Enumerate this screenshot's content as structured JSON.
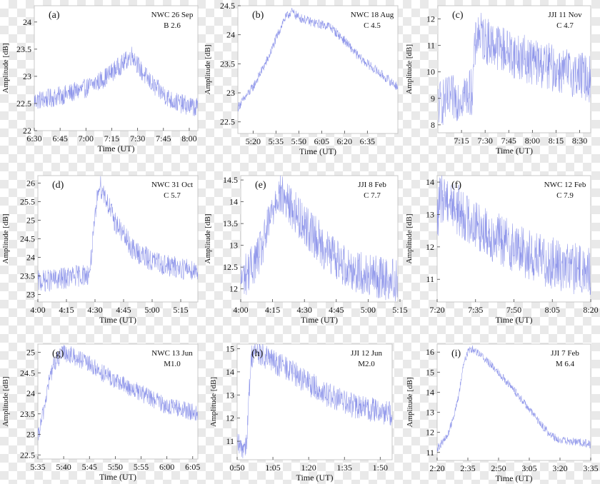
{
  "chart_data": [
    {
      "type": "line",
      "panel": "(a)",
      "station": "NWC 26 Sep",
      "flare_class": "B 2.6",
      "xlabel": "Time (UT)",
      "ylabel": "Amplitude [dB]",
      "xticks": [
        "6:30",
        "6:45",
        "7:00",
        "7:15",
        "7:30",
        "7:45",
        "8:00"
      ],
      "xlim_minutes": [
        390,
        485
      ],
      "xtick_minutes": [
        390,
        405,
        420,
        435,
        450,
        465,
        480
      ],
      "yticks": [
        22,
        22.5,
        23,
        23.5,
        24
      ],
      "ylim": [
        22,
        24.3
      ],
      "series": [
        {
          "x_minutes": [
            390,
            400,
            410,
            420,
            430,
            438,
            442,
            447,
            452,
            460,
            470,
            480,
            485
          ],
          "values": [
            22.55,
            22.6,
            22.68,
            22.78,
            22.95,
            23.15,
            23.25,
            23.4,
            23.1,
            22.8,
            22.55,
            22.45,
            22.42
          ],
          "noise": 0.18
        }
      ]
    },
    {
      "type": "line",
      "panel": "(b)",
      "station": "NWC 18 Aug",
      "flare_class": "C 4.5",
      "xlabel": "Time (UT)",
      "ylabel": "Amplitude [dB]",
      "xticks": [
        "5:20",
        "5:35",
        "5:50",
        "6:05",
        "6:20",
        "6:35"
      ],
      "xlim_minutes": [
        310,
        415
      ],
      "xtick_minutes": [
        320,
        335,
        350,
        365,
        380,
        395
      ],
      "yticks": [
        22.5,
        23,
        23.5,
        24,
        24.5
      ],
      "ylim": [
        22.3,
        24.5
      ],
      "series": [
        {
          "x_minutes": [
            310,
            320,
            330,
            340,
            345,
            350,
            360,
            370,
            380,
            390,
            400,
            415
          ],
          "values": [
            22.75,
            23.1,
            23.6,
            24.25,
            24.4,
            24.3,
            24.2,
            24.15,
            23.9,
            23.6,
            23.4,
            23.1
          ],
          "noise": 0.08
        }
      ]
    },
    {
      "type": "line",
      "panel": "(c)",
      "station": "JJI 11 Nov",
      "flare_class": "C 4.7",
      "xlabel": "Time (UT)",
      "ylabel": "Amplitude [dB]",
      "xticks": [
        "7:15",
        "7:30",
        "7:45",
        "8:00",
        "8:15",
        "8:30"
      ],
      "xlim_minutes": [
        420,
        517
      ],
      "xtick_minutes": [
        435,
        450,
        465,
        480,
        495,
        510
      ],
      "yticks": [
        8,
        9,
        10,
        11,
        12
      ],
      "ylim": [
        7.7,
        12.5
      ],
      "series": [
        {
          "x_minutes": [
            420,
            430,
            440,
            442,
            443,
            445,
            450,
            460,
            470,
            480,
            490,
            500,
            510,
            517
          ],
          "values": [
            8.8,
            9.0,
            9.2,
            9.3,
            10.5,
            11.5,
            11.2,
            10.9,
            10.6,
            10.4,
            10.2,
            10.0,
            9.9,
            9.7
          ],
          "noise": 0.9
        }
      ]
    },
    {
      "type": "line",
      "panel": "(d)",
      "station": "NWC 31 Oct",
      "flare_class": "C 5.7",
      "xlabel": "Time (UT)",
      "ylabel": "Amplitude [dB]",
      "xticks": [
        "4:00",
        "4:15",
        "4:30",
        "4:45",
        "5:00",
        "5:15"
      ],
      "xlim_minutes": [
        240,
        324
      ],
      "xtick_minutes": [
        240,
        255,
        270,
        285,
        300,
        315
      ],
      "yticks": [
        23,
        23.5,
        24,
        24.5,
        25,
        25.5,
        26
      ],
      "ylim": [
        22.8,
        26.2
      ],
      "series": [
        {
          "x_minutes": [
            240,
            250,
            260,
            267,
            268,
            270,
            272,
            275,
            280,
            290,
            300,
            310,
            324
          ],
          "values": [
            23.35,
            23.4,
            23.5,
            23.55,
            24.0,
            25.0,
            26.0,
            25.7,
            25.0,
            24.2,
            23.9,
            23.75,
            23.65
          ],
          "noise": 0.3
        }
      ]
    },
    {
      "type": "line",
      "panel": "(e)",
      "station": "JJI 8 Feb",
      "flare_class": "C 7.7",
      "xlabel": "Time (UT)",
      "ylabel": "Amplitude [dB]",
      "xticks": [
        "4:00",
        "4:15",
        "4:30",
        "4:45",
        "5:00",
        "5:15"
      ],
      "xlim_minutes": [
        240,
        314
      ],
      "xtick_minutes": [
        240,
        255,
        270,
        285,
        300,
        315
      ],
      "yticks": [
        12,
        12.5,
        13,
        13.5,
        14,
        14.5
      ],
      "ylim": [
        11.7,
        14.6
      ],
      "series": [
        {
          "x_minutes": [
            240,
            245,
            250,
            255,
            257,
            260,
            265,
            270,
            280,
            290,
            300,
            314
          ],
          "values": [
            12.2,
            12.5,
            12.9,
            13.8,
            14.2,
            14.1,
            13.8,
            13.5,
            12.9,
            12.5,
            12.3,
            12.2
          ],
          "noise": 0.5
        }
      ]
    },
    {
      "type": "line",
      "panel": "(f)",
      "station": "NWC 12 Feb",
      "flare_class": "C 7.9",
      "xlabel": "Time (UT)",
      "ylabel": "Amplitude [dB]",
      "xticks": [
        "7:20",
        "7:35",
        "7:50",
        "8:05",
        "8:20"
      ],
      "xlim_minutes": [
        440,
        500
      ],
      "xtick_minutes": [
        440,
        455,
        470,
        485,
        500
      ],
      "yticks": [
        11,
        12,
        13,
        14
      ],
      "ylim": [
        10.3,
        14.2
      ],
      "series": [
        {
          "x_minutes": [
            440,
            441,
            443,
            445,
            450,
            460,
            470,
            480,
            490,
            500
          ],
          "values": [
            12.8,
            13.4,
            13.6,
            13.4,
            13.0,
            12.4,
            12.0,
            11.6,
            11.4,
            11.2
          ],
          "noise": 0.8
        }
      ]
    },
    {
      "type": "line",
      "panel": "(g)",
      "station": "NWC 13 Jun",
      "flare_class": "M1.0",
      "xlabel": "Time (UT)",
      "ylabel": "Amplitude [dB]",
      "xticks": [
        "5:35",
        "5:40",
        "5:45",
        "5:50",
        "5:55",
        "6:00",
        "6:05"
      ],
      "xlim_minutes": [
        335,
        366
      ],
      "xtick_minutes": [
        335,
        340,
        345,
        350,
        355,
        360,
        365
      ],
      "yticks": [
        22.5,
        23,
        23.5,
        24,
        24.5,
        25
      ],
      "ylim": [
        22.4,
        25.2
      ],
      "series": [
        {
          "x_minutes": [
            335,
            336,
            337,
            338,
            340,
            342,
            345,
            350,
            355,
            360,
            366
          ],
          "values": [
            22.9,
            23.5,
            24.2,
            24.7,
            25.0,
            24.9,
            24.7,
            24.3,
            24.0,
            23.7,
            23.5
          ],
          "noise": 0.22
        }
      ]
    },
    {
      "type": "line",
      "panel": "(h)",
      "station": "JJI 12 Jun",
      "flare_class": "M2.0",
      "xlabel": "Time (UT)",
      "ylabel": "Amplitude [dB]",
      "xticks": [
        "0:50",
        "1:05",
        "1:20",
        "1:35",
        "1:50"
      ],
      "xlim_minutes": [
        50,
        115
      ],
      "xtick_minutes": [
        50,
        65,
        80,
        95,
        110
      ],
      "yticks": [
        11,
        12,
        13,
        14,
        15
      ],
      "ylim": [
        10.2,
        15.2
      ],
      "series": [
        {
          "x_minutes": [
            50,
            52,
            54,
            55,
            56,
            58,
            62,
            70,
            80,
            90,
            100,
            115
          ],
          "values": [
            10.8,
            10.7,
            11.0,
            13.0,
            14.7,
            14.9,
            14.6,
            14.2,
            13.5,
            12.9,
            12.5,
            12.2
          ],
          "noise": 0.55
        }
      ]
    },
    {
      "type": "line",
      "panel": "(i)",
      "station": "JJI 7 Feb",
      "flare_class": "M 6.4",
      "xlabel": "Time (UT)",
      "ylabel": "Amplitude [dB]",
      "xticks": [
        "2:20",
        "2:35",
        "2:50",
        "3:05",
        "3:20",
        "3:35"
      ],
      "xlim_minutes": [
        140,
        215
      ],
      "xtick_minutes": [
        140,
        155,
        170,
        185,
        200,
        215
      ],
      "yticks": [
        11,
        12,
        13,
        14,
        15,
        16
      ],
      "ylim": [
        10.6,
        16.4
      ],
      "series": [
        {
          "x_minutes": [
            140,
            145,
            150,
            153,
            156,
            160,
            170,
            180,
            190,
            195,
            200,
            210,
            215
          ],
          "values": [
            11.2,
            11.8,
            13.5,
            15.5,
            16.2,
            16.0,
            15.0,
            13.8,
            12.5,
            11.9,
            11.6,
            11.5,
            11.4
          ],
          "noise": 0.2
        }
      ]
    }
  ],
  "colors": {
    "trace": "#7b84e6",
    "frame": "#c8c8c8",
    "plot_background": "#ffffff",
    "text": "#111111"
  }
}
